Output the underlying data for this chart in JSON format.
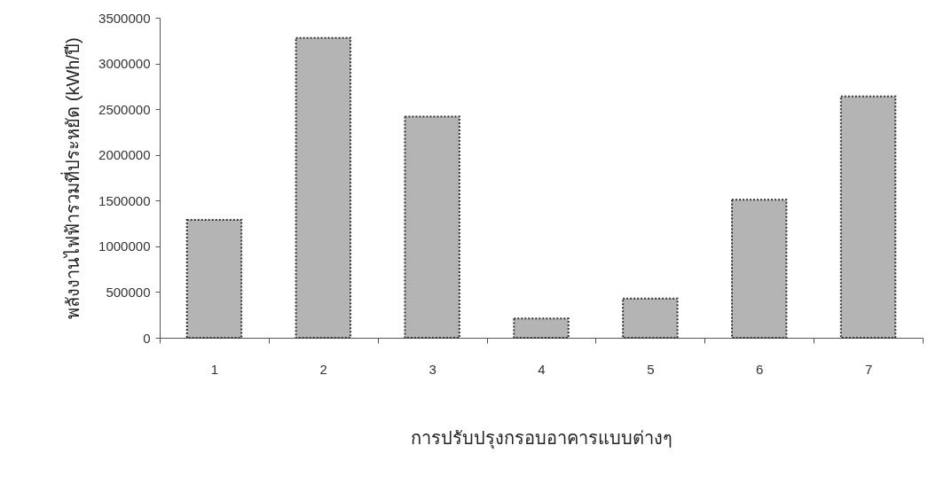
{
  "chart_data": {
    "type": "bar",
    "xlabel": "การปรับปรุงกรอบอาคารแบบต่างๆ",
    "ylabel": "พลังงานไฟฟ้ารวมที่ประหยัด (kWh/ปี)",
    "categories": [
      "1",
      "2",
      "3",
      "4",
      "5",
      "6",
      "7"
    ],
    "values": [
      1290000,
      3280000,
      2420000,
      210000,
      430000,
      1510000,
      2640000
    ],
    "color": "#b4b4b4",
    "ylim": [
      0,
      3500000
    ],
    "yticks": [
      0,
      500000,
      1000000,
      1500000,
      2000000,
      2500000,
      3000000,
      3500000
    ],
    "grid": false
  }
}
